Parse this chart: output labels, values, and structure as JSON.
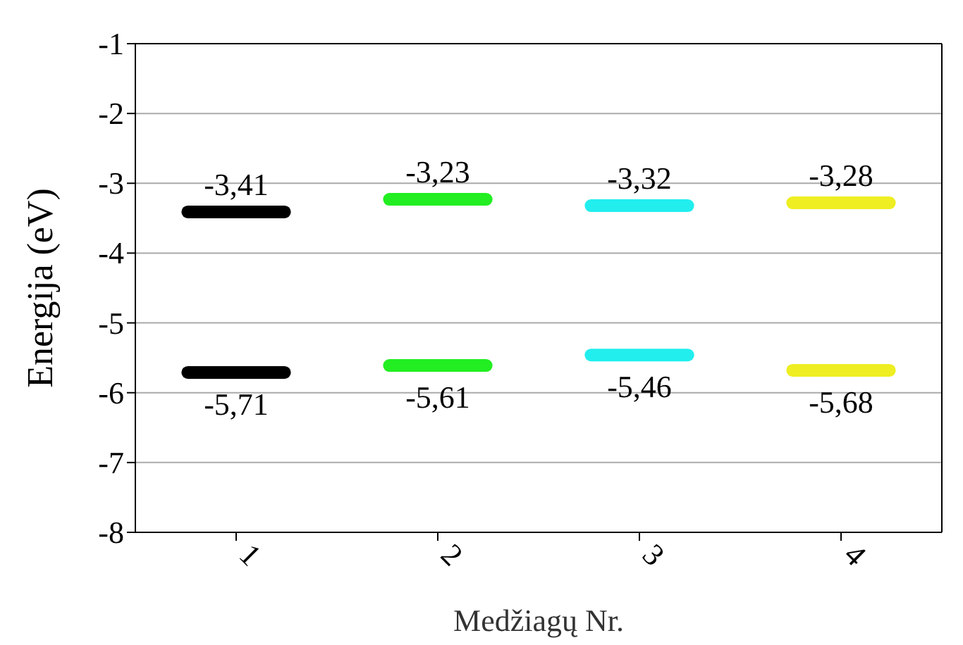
{
  "chart_data": {
    "type": "line",
    "xlabel": "Medžiagų Nr.",
    "ylabel": "Energija (eV)",
    "marker": "none",
    "series": [
      {
        "color": "#000000",
        "x": [
          0.76,
          1,
          1.24
        ],
        "values": [
          -3.41,
          -3.41,
          -3.41
        ],
        "value_labels": [
          null,
          "-3,41",
          null
        ]
      },
      {
        "color": "#22ee22",
        "x": [
          1.76,
          2,
          2.24
        ],
        "values": [
          -3.23,
          -3.23,
          -3.23
        ],
        "value_labels": [
          null,
          "-3,23",
          null
        ]
      },
      {
        "color": "#22eeee",
        "x": [
          2.76,
          3,
          3.24
        ],
        "values": [
          -3.32,
          -3.32,
          -3.32
        ],
        "value_labels": [
          null,
          "-3,32",
          null
        ]
      },
      {
        "color": "#eeee22",
        "x": [
          3.76,
          4,
          4.24
        ],
        "values": [
          -3.28,
          -3.28,
          -3.28
        ],
        "value_labels": [
          null,
          "-3,28",
          null
        ]
      },
      {
        "color": "#000000",
        "x": [
          0.76,
          1,
          1.24
        ],
        "values": [
          -5.71,
          -5.71,
          -5.71
        ],
        "value_labels": [
          null,
          "-5,71",
          null
        ]
      },
      {
        "color": "#22ee22",
        "x": [
          1.76,
          2,
          2.24
        ],
        "values": [
          -5.61,
          -5.61,
          -5.61
        ],
        "value_labels": [
          null,
          "-5,61",
          null
        ]
      },
      {
        "color": "#22eeee",
        "x": [
          2.76,
          3,
          3.24
        ],
        "values": [
          -5.46,
          -5.46,
          -5.46
        ],
        "value_labels": [
          null,
          "-5,46",
          null
        ]
      },
      {
        "color": "#eeee22",
        "x": [
          3.76,
          4,
          4.24
        ],
        "values": [
          -5.68,
          -5.68,
          -5.68
        ],
        "value_labels": [
          null,
          "-5,68",
          null
        ]
      }
    ],
    "xlim": [
      0.5,
      4.5
    ],
    "xticks": [
      1,
      2,
      3,
      4
    ],
    "ylim": [
      -8,
      -1
    ],
    "yticks": [
      -8,
      -7,
      -6,
      -5,
      -4,
      -3,
      -2,
      -1
    ],
    "grid": "y"
  }
}
